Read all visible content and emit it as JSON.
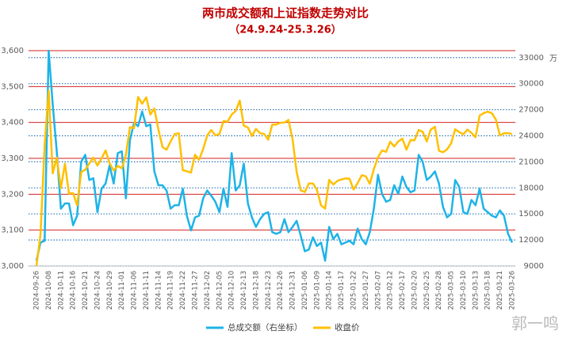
{
  "chart_data": {
    "type": "line",
    "title": "两市成交额和上证指数走势对比",
    "subtitle": "（24.9.24-25.3.26）",
    "y2_unit": "万",
    "watermark": "郭一鸣",
    "categories": [
      "2024-09-26",
      null,
      null,
      "2024-10-08",
      null,
      null,
      "2024-10-11",
      null,
      null,
      "2024-10-16",
      null,
      null,
      "2024-10-21",
      null,
      null,
      "2024-10-24",
      null,
      null,
      "2024-10-29",
      null,
      null,
      "2024-11-01",
      null,
      null,
      "2024-11-06",
      null,
      null,
      "2024-11-11",
      null,
      null,
      "2024-11-14",
      null,
      null,
      "2024-11-19",
      null,
      null,
      "2024-11-22",
      null,
      null,
      "2024-11-27",
      null,
      null,
      "2024-12-02",
      null,
      null,
      "2024-12-05",
      null,
      null,
      "2024-12-10",
      null,
      null,
      "2024-12-13",
      null,
      null,
      "2024-12-18",
      null,
      null,
      "2024-12-23",
      null,
      null,
      "2024-12-26",
      null,
      null,
      "2024-12-31",
      null,
      null,
      "2025-01-06",
      null,
      null,
      "2025-01-09",
      null,
      null,
      "2025-01-14",
      null,
      null,
      "2025-01-17",
      null,
      null,
      "2025-01-22",
      null,
      null,
      "2025-01-27",
      null,
      null,
      "2025-02-07",
      null,
      null,
      "2025-02-12",
      null,
      null,
      "2025-02-17",
      null,
      null,
      "2025-02-20",
      null,
      null,
      "2025-02-25",
      null,
      null,
      "2025-02-28",
      null,
      null,
      "2025-03-05",
      null,
      null,
      "2025-03-10",
      null,
      null,
      "2025-03-13",
      null,
      null,
      "2025-03-18",
      null,
      null,
      "2025-03-21",
      null,
      null,
      "2025-03-26"
    ],
    "series": [
      {
        "name": "总成交额（右坐标）",
        "color": "#1eb3e8",
        "axis": "y2",
        "values": [
          9600,
          11700,
          11900,
          33800,
          27600,
          22200,
          15600,
          16200,
          16200,
          13700,
          14800,
          21000,
          21800,
          18900,
          19100,
          15200,
          17900,
          18500,
          20600,
          18500,
          22000,
          22200,
          16800,
          23500,
          25500,
          25100,
          26800,
          25100,
          25300,
          19900,
          18300,
          18300,
          17700,
          15600,
          16000,
          16000,
          17900,
          14800,
          13100,
          14600,
          14800,
          16800,
          17700,
          17100,
          16400,
          15200,
          17900,
          15800,
          22000,
          17700,
          18300,
          20800,
          16200,
          14600,
          13500,
          14400,
          15000,
          15200,
          12900,
          12700,
          12900,
          14400,
          12900,
          13500,
          14200,
          12500,
          10700,
          10900,
          12300,
          11300,
          11700,
          9600,
          13500,
          12100,
          12700,
          11500,
          11700,
          11900,
          11500,
          13300,
          12100,
          11500,
          12900,
          15600,
          19500,
          17300,
          16400,
          16600,
          18300,
          17300,
          19300,
          18100,
          17500,
          17700,
          21800,
          21000,
          18900,
          19300,
          19900,
          18500,
          15800,
          14600,
          15000,
          18900,
          18100,
          15200,
          15000,
          16600,
          16000,
          17900,
          15600,
          15200,
          14800,
          14600,
          15400,
          14800,
          12700,
          11700
        ]
      },
      {
        "name": "收盘价",
        "color": "#ffc000",
        "values": [
          3001,
          3088,
          3336,
          3489,
          3258,
          3302,
          3217,
          3285,
          3202,
          3203,
          3169,
          3262,
          3268,
          3286,
          3302,
          3280,
          3300,
          3322,
          3286,
          3266,
          3279,
          3272,
          3310,
          3387,
          3384,
          3471,
          3452,
          3470,
          3422,
          3439,
          3380,
          3331,
          3324,
          3347,
          3368,
          3370,
          3267,
          3264,
          3260,
          3310,
          3296,
          3326,
          3364,
          3379,
          3364,
          3368,
          3404,
          3402,
          3422,
          3432,
          3461,
          3391,
          3386,
          3362,
          3382,
          3370,
          3368,
          3352,
          3394,
          3394,
          3399,
          3400,
          3407,
          3352,
          3262,
          3211,
          3206,
          3230,
          3230,
          3212,
          3169,
          3160,
          3240,
          3227,
          3237,
          3241,
          3244,
          3243,
          3213,
          3231,
          3253,
          3250,
          3229,
          3270,
          3303,
          3322,
          3318,
          3346,
          3333,
          3347,
          3355,
          3324,
          3351,
          3350,
          3379,
          3374,
          3347,
          3380,
          3388,
          3321,
          3317,
          3325,
          3342,
          3381,
          3373,
          3367,
          3380,
          3371,
          3359,
          3419,
          3426,
          3430,
          3426,
          3408,
          3364,
          3370,
          3370,
          3368
        ]
      }
    ],
    "ylim": [
      3000,
      3600
    ],
    "yticks": [
      {
        "value": 3000,
        "label": "3,000"
      },
      {
        "value": 3100,
        "label": "3,100"
      },
      {
        "value": 3200,
        "label": "3,200"
      },
      {
        "value": 3300,
        "label": "3,300"
      },
      {
        "value": 3400,
        "label": "3,400"
      },
      {
        "value": 3500,
        "label": "3,500"
      },
      {
        "value": 3600,
        "label": "3,600"
      }
    ],
    "y2lim": [
      9000,
      33800
    ],
    "y2ticks": [
      9000,
      12000,
      15000,
      18000,
      21000,
      24000,
      27000,
      30000,
      33000
    ],
    "grid": true,
    "legend": "bottom"
  }
}
